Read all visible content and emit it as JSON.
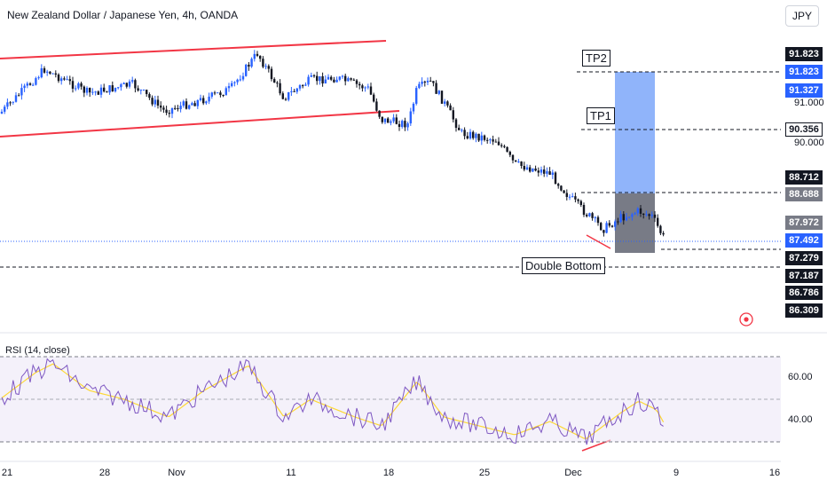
{
  "header": {
    "title": "New Zealand Dollar / Japanese Yen, 4h, OANDA",
    "currency": "JPY"
  },
  "price_axis": {
    "labels": [
      "91.000",
      "90.000"
    ],
    "tags": [
      {
        "value": "91.823",
        "style": "black"
      },
      {
        "value": "91.823",
        "style": "blue"
      },
      {
        "value": "91.327",
        "style": "blue"
      },
      {
        "value": "90.356",
        "style": "white"
      },
      {
        "value": "88.712",
        "style": "black"
      },
      {
        "value": "88.688",
        "style": "gray"
      },
      {
        "value": "87.972",
        "style": "gray"
      },
      {
        "value": "87.492",
        "style": "blue"
      },
      {
        "value": "87.279",
        "style": "black"
      },
      {
        "value": "87.187",
        "style": "black"
      },
      {
        "value": "86.786",
        "style": "black"
      },
      {
        "value": "86.309",
        "style": "black"
      }
    ]
  },
  "annotations": {
    "tp2": "TP2",
    "tp1": "TP1",
    "double_bottom": "Double Bottom"
  },
  "rsi": {
    "title": "RSI (14, close)",
    "levels": [
      "60.00",
      "40.00"
    ]
  },
  "time_axis": [
    "21",
    "28",
    "Nov",
    "11",
    "18",
    "25",
    "Dec",
    "9",
    "16"
  ],
  "colors": {
    "up_candle": "#2962ff",
    "down_candle": "#131722",
    "channel_line": "#f23645",
    "target_zone": "#90b4fa",
    "entry_zone": "#787b86",
    "rsi_line": "#7e57c2",
    "rsi_ma": "#fdd835",
    "rsi_band": "#ede7f6"
  },
  "icons": {
    "target": "target-icon"
  }
}
